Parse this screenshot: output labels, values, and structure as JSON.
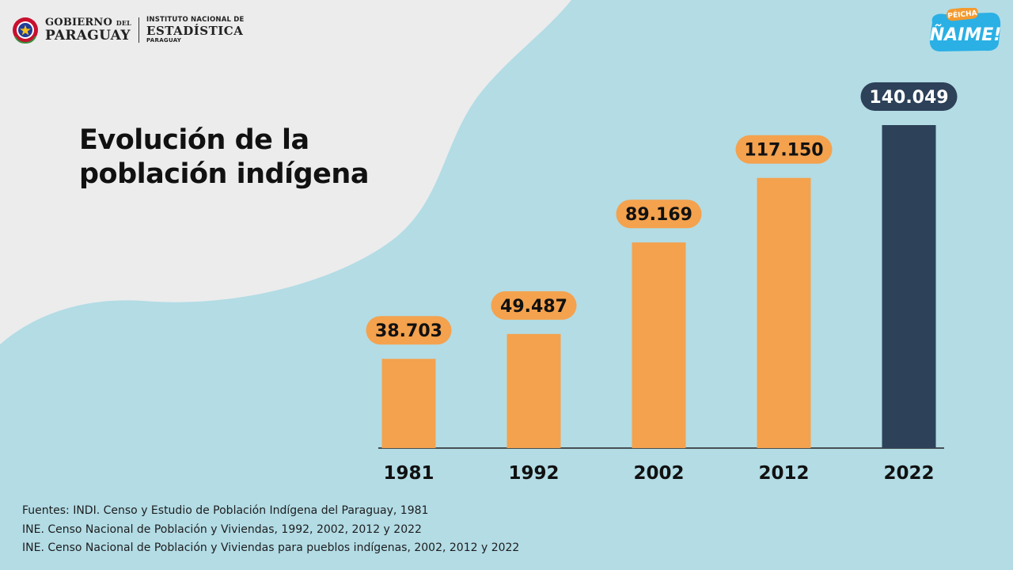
{
  "header": {
    "gov_line1": "GOBIERNO",
    "gov_line1_small": "DEL",
    "gov_line2": "PARAGUAY",
    "ine_line1": "INSTITUTO NACIONAL DE",
    "ine_line2": "ESTADÍSTICA",
    "ine_line3": "PARAGUAY",
    "badge_top": "PÉICHA",
    "badge_main": "ÑAIME!"
  },
  "colors": {
    "background": "#b3dce5",
    "panel": "#ececec",
    "bar": "#f4a24e",
    "bar_highlight": "#2d4159",
    "label_text_dark": "#111111",
    "label_text_light": "#ffffff"
  },
  "chart_data": {
    "type": "bar",
    "title": "Evolución de la población indígena",
    "title_lines": [
      "Evolución de la",
      "población indígena"
    ],
    "categories": [
      "1981",
      "1992",
      "2002",
      "2012",
      "2022"
    ],
    "values": [
      38703,
      49487,
      89169,
      117150,
      140049
    ],
    "value_labels": [
      "38.703",
      "49.487",
      "89.169",
      "117.150",
      "140.049"
    ],
    "highlight_index": 4,
    "ylim": [
      0,
      140049
    ],
    "grid": false,
    "xlabel": "",
    "ylabel": ""
  },
  "sources": [
    "Fuentes: INDI. Censo y Estudio de Población Indígena del Paraguay, 1981",
    "INE. Censo Nacional de Población y Viviendas, 1992, 2002, 2012 y 2022",
    "INE. Censo Nacional de Población y Viviendas para pueblos indígenas, 2002, 2012 y 2022"
  ]
}
